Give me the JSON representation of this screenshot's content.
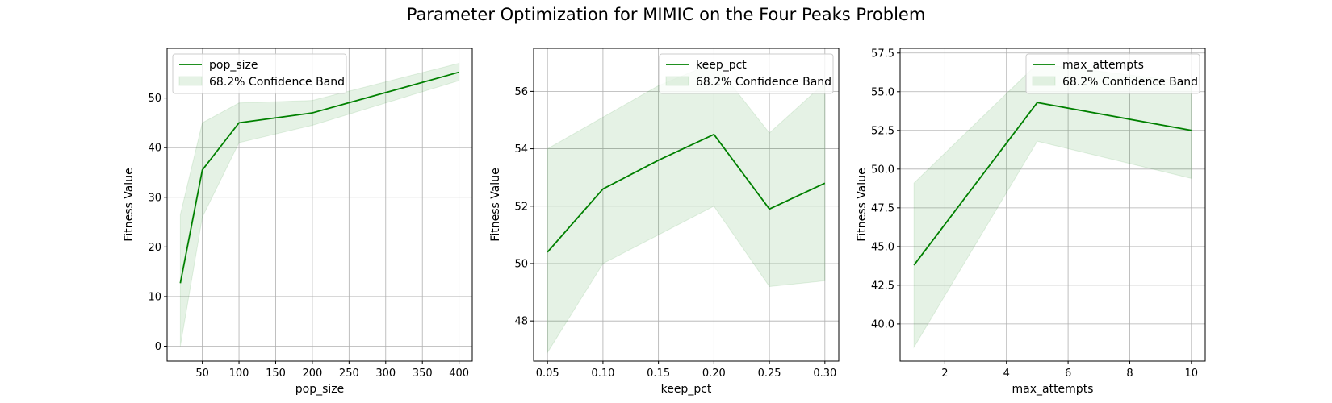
{
  "figure": {
    "title": "Parameter Optimization for MIMIC on the Four Peaks Problem"
  },
  "colors": {
    "line": "#008000",
    "band": "#008000",
    "grid": "#b0b0b0",
    "axes": "#000000",
    "legend_border": "#cccccc"
  },
  "chart_data": [
    {
      "type": "line",
      "xlabel": "pop_size",
      "ylabel": "Fitness Value",
      "xlim": [
        2,
        418
      ],
      "ylim": [
        -3,
        60
      ],
      "xticks": [
        50,
        100,
        150,
        200,
        250,
        300,
        350,
        400
      ],
      "xtick_labels": [
        "50",
        "100",
        "150",
        "200",
        "250",
        "300",
        "350",
        "400"
      ],
      "yticks": [
        0,
        10,
        20,
        30,
        40,
        50
      ],
      "ytick_labels": [
        "0",
        "10",
        "20",
        "30",
        "40",
        "50"
      ],
      "grid": true,
      "legend_position": "upper left",
      "series": [
        {
          "name": "pop_size",
          "band_label": "68.2% Confidence Band",
          "x": [
            20,
            50,
            100,
            200,
            400
          ],
          "y": [
            12.7,
            35.5,
            45.0,
            47.0,
            55.2
          ],
          "lower": [
            0,
            26,
            41,
            44.5,
            53.5
          ],
          "upper": [
            26.5,
            45.0,
            49.0,
            49.5,
            57.0
          ]
        }
      ]
    },
    {
      "type": "line",
      "xlabel": "keep_pct",
      "ylabel": "Fitness Value",
      "xlim": [
        0.0375,
        0.3125
      ],
      "ylim": [
        46.6,
        57.5
      ],
      "xticks": [
        0.05,
        0.1,
        0.15,
        0.2,
        0.25,
        0.3
      ],
      "xtick_labels": [
        "0.05",
        "0.10",
        "0.15",
        "0.20",
        "0.25",
        "0.30"
      ],
      "yticks": [
        48,
        50,
        52,
        54,
        56
      ],
      "ytick_labels": [
        "48",
        "50",
        "52",
        "54",
        "56"
      ],
      "grid": true,
      "legend_position": "upper right",
      "series": [
        {
          "name": "keep_pct",
          "band_label": "68.2% Confidence Band",
          "x": [
            0.05,
            0.1,
            0.15,
            0.2,
            0.25,
            0.3
          ],
          "y": [
            50.4,
            52.6,
            53.6,
            54.5,
            51.9,
            52.8
          ],
          "lower": [
            46.9,
            50.0,
            51.0,
            52.0,
            49.2,
            49.4
          ],
          "upper": [
            54.0,
            55.1,
            56.2,
            57.0,
            54.55,
            56.3
          ]
        }
      ]
    },
    {
      "type": "line",
      "xlabel": "max_attempts",
      "ylabel": "Fitness Value",
      "xlim": [
        0.55,
        10.45
      ],
      "ylim": [
        37.6,
        57.8
      ],
      "xticks": [
        2,
        4,
        6,
        8,
        10
      ],
      "xtick_labels": [
        "2",
        "4",
        "6",
        "8",
        "10"
      ],
      "yticks": [
        40.0,
        42.5,
        45.0,
        47.5,
        50.0,
        52.5,
        55.0,
        57.5
      ],
      "ytick_labels": [
        "40.0",
        "42.5",
        "45.0",
        "47.5",
        "50.0",
        "52.5",
        "55.0",
        "57.5"
      ],
      "grid": true,
      "legend_position": "upper right",
      "series": [
        {
          "name": "max_attempts",
          "band_label": "68.2% Confidence Band",
          "x": [
            1,
            5,
            10
          ],
          "y": [
            43.8,
            54.3,
            52.5
          ],
          "lower": [
            38.5,
            51.8,
            49.4
          ],
          "upper": [
            49.1,
            56.8,
            55.6
          ]
        }
      ]
    }
  ]
}
